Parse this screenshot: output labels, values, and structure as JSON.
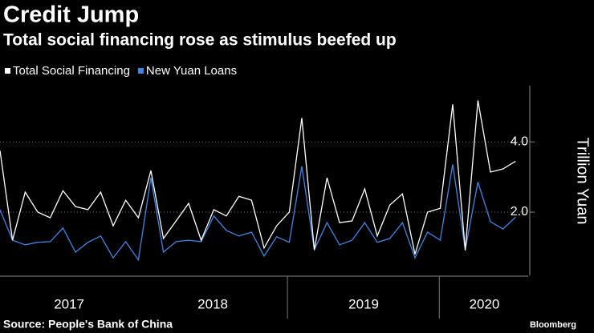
{
  "chart_data": {
    "type": "line",
    "title": "Credit Jump",
    "subtitle": "Total social financing rose as stimulus beefed up",
    "y_axis_label": "Trillion Yuan",
    "source": "Source: People's Bank of China",
    "brand": "Bloomberg",
    "x": [
      2017,
      2017.083,
      2017.167,
      2017.25,
      2017.333,
      2017.417,
      2017.5,
      2017.583,
      2017.667,
      2017.75,
      2017.833,
      2017.917,
      2018,
      2018.083,
      2018.167,
      2018.25,
      2018.333,
      2018.417,
      2018.5,
      2018.583,
      2018.667,
      2018.75,
      2018.833,
      2018.917,
      2019,
      2019.083,
      2019.167,
      2019.25,
      2019.333,
      2019.417,
      2019.5,
      2019.583,
      2019.667,
      2019.75,
      2019.833,
      2019.917,
      2020,
      2020.083,
      2020.167,
      2020.25,
      2020.333,
      2020.417
    ],
    "series": [
      {
        "name": "Total Social Financing",
        "color": "#ffffff",
        "values": [
          3.75,
          1.2,
          2.57,
          2.0,
          1.84,
          2.61,
          2.16,
          2.07,
          2.57,
          1.61,
          2.34,
          1.84,
          3.18,
          1.25,
          1.75,
          2.25,
          1.2,
          2.07,
          1.89,
          2.45,
          2.34,
          0.98,
          1.61,
          2.0,
          4.68,
          0.93,
          2.98,
          1.7,
          1.75,
          2.66,
          1.32,
          2.2,
          2.52,
          0.8,
          2.0,
          2.11,
          5.07,
          0.91,
          5.18,
          3.14,
          3.23,
          3.45
        ]
      },
      {
        "name": "New Yuan Loans",
        "color": "#3d86e8",
        "values": [
          2.07,
          1.2,
          1.07,
          1.14,
          1.16,
          1.55,
          0.86,
          1.14,
          1.32,
          0.7,
          1.16,
          0.64,
          2.98,
          0.86,
          1.16,
          1.2,
          1.16,
          1.89,
          1.48,
          1.32,
          1.43,
          0.75,
          1.3,
          1.14,
          3.3,
          0.93,
          1.7,
          1.07,
          1.2,
          1.7,
          1.14,
          1.25,
          1.7,
          0.7,
          1.43,
          1.2,
          3.36,
          0.93,
          2.86,
          1.73,
          1.52,
          1.86
        ]
      }
    ],
    "xlim": [
      2017,
      2020.5
    ],
    "xticks": [
      {
        "value": 2017.458,
        "label": "2017"
      },
      {
        "value": 2018.41,
        "label": "2018"
      },
      {
        "value": 2019.41,
        "label": "2019"
      },
      {
        "value": 2020.21,
        "label": "2020"
      }
    ],
    "x_separators": [
      2018.905,
      2019.911
    ],
    "ylim": [
      0.2,
      5.6
    ],
    "yticks": [
      {
        "value": 2,
        "label": "2.0"
      },
      {
        "value": 4,
        "label": "4.0"
      }
    ],
    "grid": true,
    "legend": "top-left"
  }
}
